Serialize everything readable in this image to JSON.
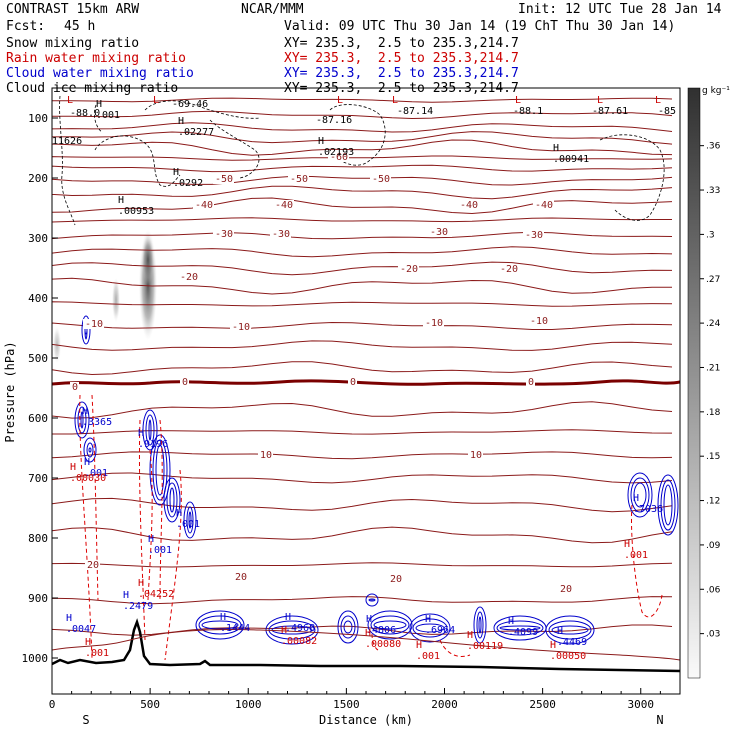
{
  "header": {
    "model": "CONTRAST 15km ARW",
    "org": "NCAR/MMM",
    "init": "Init: 12 UTC Tue 28 Jan 14",
    "fcst_label": "Fcst:",
    "fcst_value": "45 h",
    "valid": "Valid: 09 UTC Thu 30 Jan 14 (19 ChT Thu 30 Jan 14)",
    "fields": [
      {
        "name": "Snow mixing ratio",
        "color": "#000000",
        "xy": "XY= 235.3,  2.5 to 235.3,214.7"
      },
      {
        "name": "Rain water mixing ratio",
        "color": "#cc0000",
        "xy": "XY= 235.3,  2.5 to 235.3,214.7"
      },
      {
        "name": "Cloud water mixing ratio",
        "color": "#0000cc",
        "xy": "XY= 235.3,  2.5 to 235.3,214.7"
      },
      {
        "name": "Cloud ice mixing ratio",
        "color": "#000000",
        "xy": "XY= 235.3,  2.5 to 235.3,214.7"
      }
    ]
  },
  "chart_data": {
    "type": "cross-section",
    "xlabel": "Distance (km)",
    "ylabel": "Pressure (hPa)",
    "xlim": [
      0,
      3200
    ],
    "ylim": [
      1060,
      50
    ],
    "x_ticks": [
      0,
      500,
      1000,
      1500,
      2000,
      2500,
      3000
    ],
    "y_ticks": [
      100,
      200,
      300,
      400,
      500,
      600,
      700,
      800,
      900,
      1000
    ],
    "end_labels": {
      "left": "S",
      "right": "N"
    },
    "colorbar": {
      "unit": "g kg⁻¹",
      "ticks": [
        ".03",
        ".06",
        ".09",
        ".12",
        ".15",
        ".18",
        ".21",
        ".24",
        ".27",
        ".3",
        ".33",
        ".36"
      ]
    },
    "temperature_labels": [
      "-60",
      "-50",
      "-50",
      "-50",
      "-40",
      "-40",
      "-40",
      "-40",
      "-30",
      "-30",
      "-30",
      "-30",
      "-20",
      "-20",
      "-20",
      "-10",
      "-10",
      "-10",
      "-10",
      "0",
      "0",
      "0",
      "0",
      "10",
      "10",
      "20",
      "20",
      "20",
      "20"
    ],
    "high_labels": [
      {
        "name": "H",
        "value": ".001"
      },
      {
        "name": "H",
        "value": ".02277"
      },
      {
        "name": "H",
        "value": ".02193"
      },
      {
        "name": "H",
        "value": ".0292"
      },
      {
        "name": "H",
        "value": ".00953"
      },
      {
        "name": "H",
        "value": ".00941"
      },
      {
        "name": "H",
        "value": ".3365"
      },
      {
        "name": "H",
        "value": ".9196"
      },
      {
        "name": "H",
        "value": ".001"
      },
      {
        "name": "H",
        "value": ".00030"
      },
      {
        "name": "H",
        "value": ".001"
      },
      {
        "name": "H",
        "value": ".001"
      },
      {
        "name": "H",
        "value": ".04252"
      },
      {
        "name": "H",
        "value": ".2479"
      },
      {
        "name": "H",
        "value": ".0047"
      },
      {
        "name": "H",
        "value": ".001"
      },
      {
        "name": "H",
        "value": ".1444"
      },
      {
        "name": "H",
        "value": ".4968"
      },
      {
        "name": "H",
        "value": ".00082"
      },
      {
        "name": "H",
        "value": ".4806"
      },
      {
        "name": "H",
        "value": ".00080"
      },
      {
        "name": "H",
        "value": ".6964"
      },
      {
        "name": "H",
        "value": ".001"
      },
      {
        "name": "H",
        "value": ".00119"
      },
      {
        "name": "H",
        "value": ".4099"
      },
      {
        "name": "H",
        "value": ".4469"
      },
      {
        "name": "H",
        "value": ".00050"
      },
      {
        "name": "H",
        "value": ".7036"
      },
      {
        "name": "H",
        "value": ".001"
      }
    ],
    "top_labels": [
      "L",
      "L",
      "L",
      "L",
      "L",
      "L",
      "L",
      "-88.0",
      "-69.46",
      "-87.16",
      "-87.14",
      "-88.1",
      "-87.61",
      "-85",
      "11626"
    ]
  }
}
